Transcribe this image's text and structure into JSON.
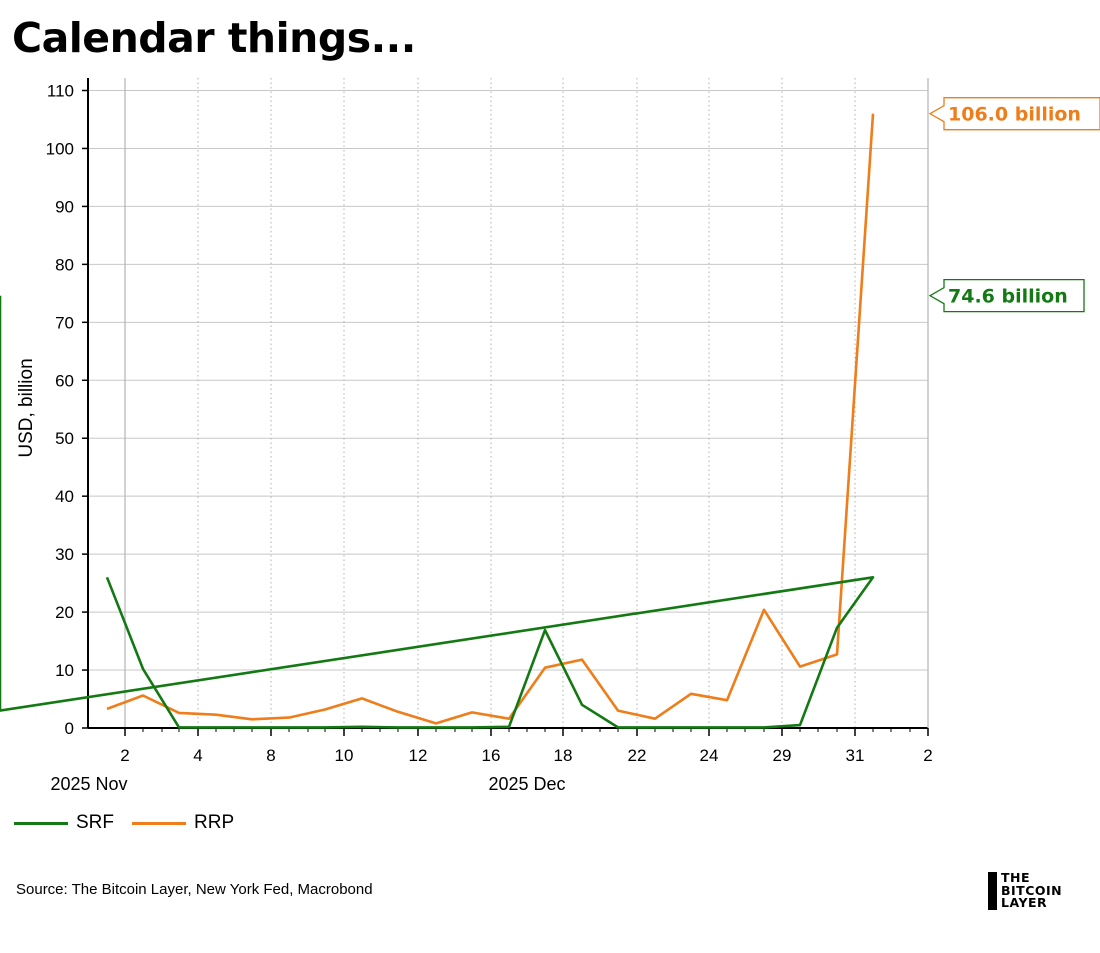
{
  "title": "Calendar things...",
  "source": "Source: The Bitcoin Layer, New York Fed, Macrobond",
  "logo": {
    "lines": [
      "THE",
      "BITCOIN",
      "LAYER"
    ]
  },
  "colors": {
    "srf": "#137a13",
    "rrp": "#ee7d1a"
  },
  "chart_data": {
    "type": "line",
    "ylabel": "USD, billion",
    "ylim": [
      0,
      110
    ],
    "yticks": [
      0,
      10,
      20,
      30,
      40,
      50,
      60,
      70,
      80,
      90,
      100,
      110
    ],
    "xlim": [
      "2025-10-31",
      "2026-01-02"
    ],
    "xticks": [
      {
        "date": "2025-11-02",
        "label": "2"
      },
      {
        "date": "2025-11-04",
        "label": "4"
      },
      {
        "date": "2025-11-08",
        "label": "8"
      },
      {
        "date": "2025-11-10",
        "label": "10"
      },
      {
        "date": "2025-11-12",
        "label": "12"
      },
      {
        "date": "2025-12-16",
        "label": "16"
      },
      {
        "date": "2025-12-18",
        "label": "18"
      },
      {
        "date": "2025-12-22",
        "label": "22"
      },
      {
        "date": "2025-12-24",
        "label": "24"
      },
      {
        "date": "2025-12-29",
        "label": "29"
      },
      {
        "date": "2025-12-31",
        "label": "31"
      },
      {
        "date": "2026-01-02",
        "label": "2"
      }
    ],
    "period_labels": [
      {
        "date": "2025-11-02",
        "label": "2025 Nov"
      },
      {
        "date": "2025-12-18",
        "label": "2025 Dec"
      }
    ],
    "x": [
      "2025-11-01",
      "2025-11-02",
      "2025-11-03",
      "2025-11-04",
      "2025-11-05",
      "2025-11-06",
      "2025-11-07",
      "2025-11-08",
      "2025-11-09",
      "2025-11-10",
      "2025-11-11",
      "2025-11-12",
      "2025-12-15",
      "2025-12-16",
      "2025-12-17",
      "2025-12-18",
      "2025-12-19",
      "2025-12-22",
      "2025-12-23",
      "2025-12-24",
      "2025-12-26",
      "2025-12-29",
      "2025-12-30",
      "2025-12-31",
      "2026-01-01"
    ],
    "series": [
      {
        "name": "SRF",
        "values": [
          26.0,
          10.2,
          0.1,
          0.1,
          0.1,
          0.1,
          0.1,
          0.2,
          0.1,
          0.1,
          0.1,
          0.2,
          16.9,
          4.0,
          0.1,
          0.1,
          0.1,
          0.1,
          0.1,
          0.5,
          17.3,
          26.0,
          3.0,
          74.6,
          null
        ]
      },
      {
        "name": "RRP",
        "values": [
          3.3,
          5.6,
          2.6,
          2.3,
          1.5,
          1.8,
          3.2,
          5.1,
          2.8,
          0.8,
          2.7,
          1.6,
          10.4,
          11.8,
          3.0,
          1.6,
          5.9,
          4.8,
          20.4,
          10.6,
          12.7,
          106.0,
          null,
          null,
          null
        ]
      }
    ],
    "annotations": [
      {
        "series": "RRP",
        "text": "106.0 billion",
        "value": 106.0
      },
      {
        "series": "SRF",
        "text": "74.6 billion",
        "value": 74.6
      }
    ],
    "legend": "bottom-left",
    "grid": true
  }
}
